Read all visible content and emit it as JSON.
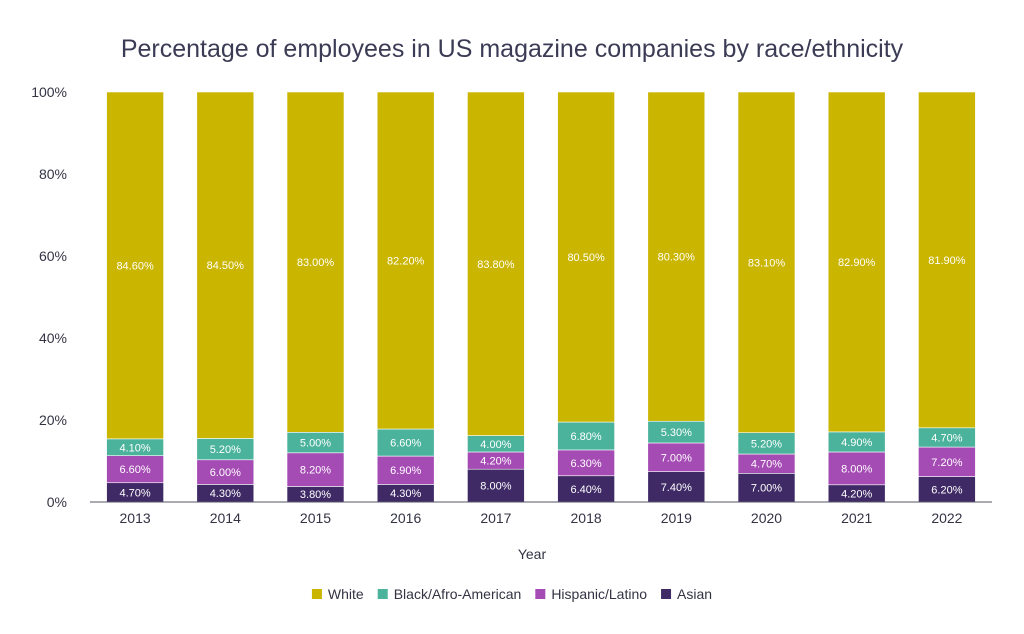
{
  "chart_data": {
    "type": "bar",
    "stacked": true,
    "title": "Percentage of employees in US magazine companies by race/ethnicity",
    "xlabel": "Year",
    "ylabel": "",
    "ylim": [
      0,
      100
    ],
    "y_ticks": [
      "0%",
      "20%",
      "40%",
      "60%",
      "80%",
      "100%"
    ],
    "grid": false,
    "legend_position": "bottom",
    "categories": [
      "2013",
      "2014",
      "2015",
      "2016",
      "2017",
      "2018",
      "2019",
      "2020",
      "2021",
      "2022"
    ],
    "series": [
      {
        "name": "Asian",
        "color": "#3f2a66",
        "values": [
          4.7,
          4.3,
          3.8,
          4.3,
          8.0,
          6.4,
          7.4,
          7.0,
          4.2,
          6.2
        ],
        "labels": [
          "4.70%",
          "4.30%",
          "3.80%",
          "4.30%",
          "8.00%",
          "6.40%",
          "7.40%",
          "7.00%",
          "4.20%",
          "6.20%"
        ]
      },
      {
        "name": "Hispanic/Latino",
        "color": "#a54bb4",
        "values": [
          6.6,
          6.0,
          8.2,
          6.9,
          4.2,
          6.3,
          7.0,
          4.7,
          8.0,
          7.2
        ],
        "labels": [
          "6.60%",
          "6.00%",
          "8.20%",
          "6.90%",
          "4.20%",
          "6.30%",
          "7.00%",
          "4.70%",
          "8.00%",
          "7.20%"
        ]
      },
      {
        "name": "Black/Afro-American",
        "color": "#4bb39c",
        "values": [
          4.1,
          5.2,
          5.0,
          6.6,
          4.0,
          6.8,
          5.3,
          5.2,
          4.9,
          4.7
        ],
        "labels": [
          "4.10%",
          "5.20%",
          "5.00%",
          "6.60%",
          "4.00%",
          "6.80%",
          "5.30%",
          "5.20%",
          "4.90%",
          "4.70%"
        ]
      },
      {
        "name": "White",
        "color": "#cab500",
        "values": [
          84.6,
          84.5,
          83.0,
          82.2,
          83.8,
          80.5,
          80.3,
          83.1,
          82.9,
          81.9
        ],
        "labels": [
          "84.60%",
          "84.50%",
          "83.00%",
          "82.20%",
          "83.80%",
          "80.50%",
          "80.30%",
          "83.10%",
          "82.90%",
          "81.90%"
        ]
      }
    ],
    "legend_order": [
      "White",
      "Black/Afro-American",
      "Hispanic/Latino",
      "Asian"
    ]
  }
}
